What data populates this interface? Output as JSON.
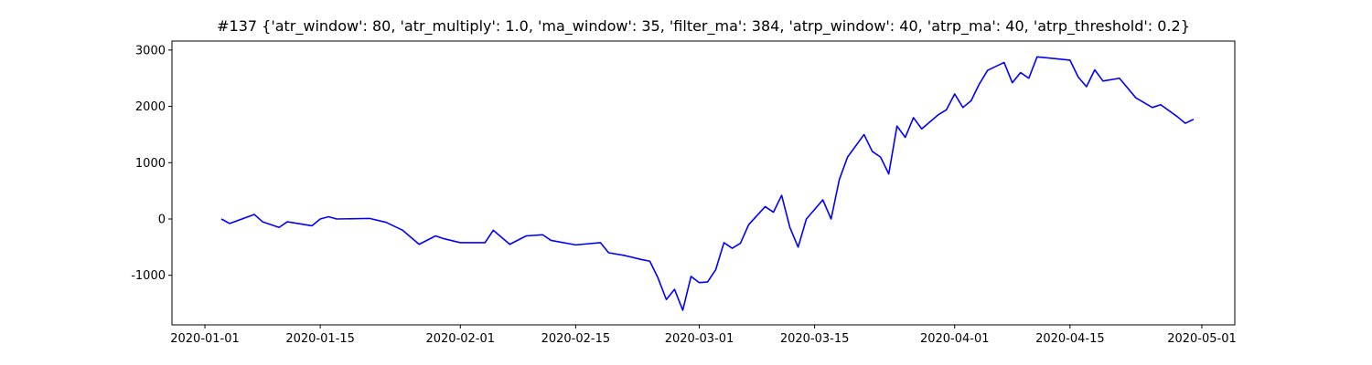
{
  "chart_data": {
    "type": "line",
    "title": "#137 {'atr_window': 80, 'atr_multiply': 1.0, 'ma_window': 35, 'filter_ma': 384, 'atrp_window': 40, 'atrp_ma': 40, 'atrp_threshold': 0.2}",
    "x": [
      "2020-01-03",
      "2020-01-04",
      "2020-01-07",
      "2020-01-08",
      "2020-01-09",
      "2020-01-10",
      "2020-01-11",
      "2020-01-14",
      "2020-01-15",
      "2020-01-16",
      "2020-01-17",
      "2020-01-21",
      "2020-01-23",
      "2020-01-25",
      "2020-01-27",
      "2020-01-29",
      "2020-01-30",
      "2020-02-01",
      "2020-02-04",
      "2020-02-05",
      "2020-02-07",
      "2020-02-09",
      "2020-02-11",
      "2020-02-12",
      "2020-02-15",
      "2020-02-18",
      "2020-02-19",
      "2020-02-21",
      "2020-02-23",
      "2020-02-24",
      "2020-02-25",
      "2020-02-26",
      "2020-02-27",
      "2020-02-28",
      "2020-02-29",
      "2020-03-01",
      "2020-03-02",
      "2020-03-03",
      "2020-03-04",
      "2020-03-05",
      "2020-03-06",
      "2020-03-07",
      "2020-03-09",
      "2020-03-10",
      "2020-03-11",
      "2020-03-12",
      "2020-03-13",
      "2020-03-14",
      "2020-03-16",
      "2020-03-17",
      "2020-03-18",
      "2020-03-19",
      "2020-03-21",
      "2020-03-22",
      "2020-03-23",
      "2020-03-24",
      "2020-03-25",
      "2020-03-26",
      "2020-03-27",
      "2020-03-28",
      "2020-03-30",
      "2020-03-31",
      "2020-04-01",
      "2020-04-02",
      "2020-04-03",
      "2020-04-04",
      "2020-04-05",
      "2020-04-07",
      "2020-04-08",
      "2020-04-09",
      "2020-04-10",
      "2020-04-11",
      "2020-04-15",
      "2020-04-16",
      "2020-04-17",
      "2020-04-18",
      "2020-04-19",
      "2020-04-21",
      "2020-04-23",
      "2020-04-25",
      "2020-04-26",
      "2020-04-28",
      "2020-04-29",
      "2020-04-30"
    ],
    "series": [
      {
        "color": "#0000ff",
        "values": [
          0,
          -80,
          80,
          -50,
          -100,
          -150,
          -50,
          -120,
          0,
          40,
          0,
          10,
          -60,
          -200,
          -450,
          -300,
          -350,
          -420,
          -420,
          -200,
          -450,
          -300,
          -280,
          -380,
          -460,
          -420,
          -600,
          -650,
          -720,
          -750,
          -1050,
          -1430,
          -1250,
          -1620,
          -1020,
          -1130,
          -1120,
          -900,
          -420,
          -520,
          -430,
          -100,
          220,
          120,
          420,
          -150,
          -500,
          0,
          340,
          0,
          700,
          1100,
          1500,
          1200,
          1100,
          800,
          1650,
          1450,
          1800,
          1600,
          1850,
          1940,
          2220,
          1980,
          2100,
          2400,
          2640,
          2780,
          2420,
          2600,
          2500,
          2880,
          2820,
          2520,
          2350,
          2650,
          2450,
          2500,
          2150,
          1980,
          2030,
          1820,
          1700,
          1770
        ]
      }
    ],
    "xlim": [
      "2019-12-28",
      "2020-05-05"
    ],
    "xticks": [
      "2020-01-01",
      "2020-01-15",
      "2020-02-01",
      "2020-02-15",
      "2020-03-01",
      "2020-03-15",
      "2020-04-01",
      "2020-04-15",
      "2020-05-01"
    ],
    "ylim": [
      -1880,
      3160
    ],
    "yticks": [
      -1000,
      0,
      1000,
      2000,
      3000
    ],
    "grid": false
  }
}
